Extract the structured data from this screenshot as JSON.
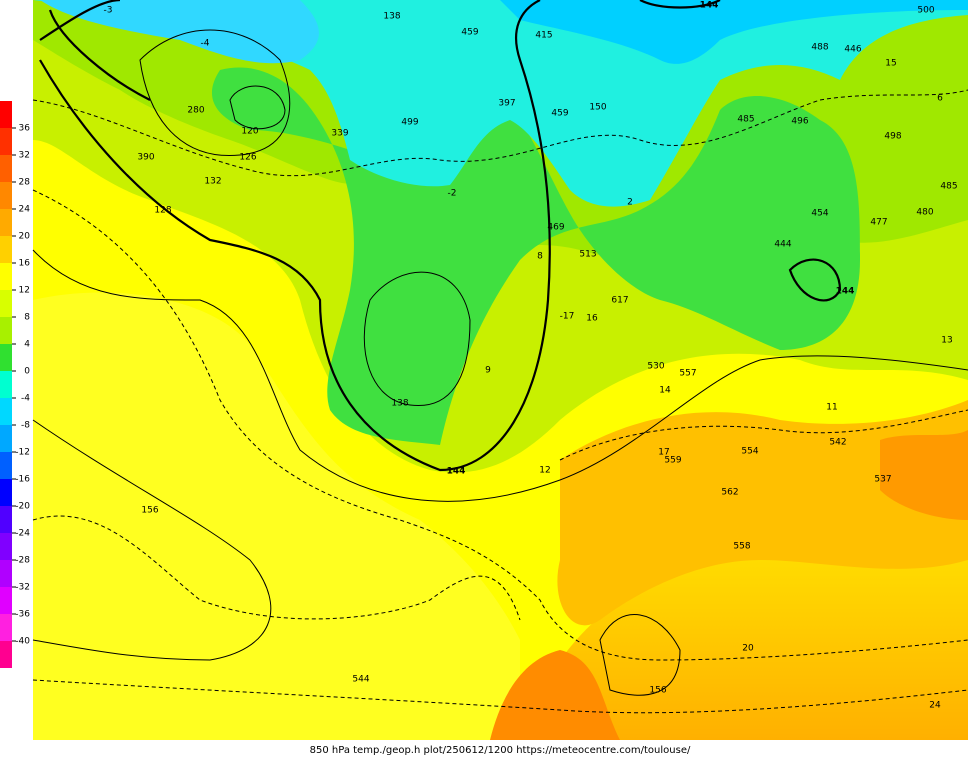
{
  "legend": {
    "ticks": [
      "36",
      "32",
      "28",
      "24",
      "20",
      "16",
      "12",
      "8",
      "4",
      "0",
      "-4",
      "-8",
      "-12",
      "-16",
      "-20",
      "-24",
      "-28",
      "-32",
      "-36",
      "-40"
    ]
  },
  "contour_labels": [
    "144",
    "144",
    "138",
    "138",
    "132",
    "126",
    "120",
    "150",
    "156",
    "156",
    "144"
  ],
  "isotherm_labels": [
    "-3",
    "-4",
    "-2",
    "2",
    "8",
    "9",
    "12",
    "17",
    "20",
    "24",
    "15",
    "14",
    "13",
    "16",
    "-17",
    "6",
    "11"
  ],
  "station_labels": [
    "459",
    "500",
    "485",
    "446",
    "390",
    "128",
    "280",
    "339",
    "499",
    "459",
    "415",
    "397",
    "469",
    "513",
    "617",
    "557",
    "559",
    "562",
    "558",
    "544",
    "554",
    "530",
    "542",
    "537",
    "488",
    "477",
    "454",
    "444",
    "496",
    "498",
    "485",
    "480"
  ],
  "footer": "850 hPa temp./geop.h plot/250612/1200 https://meteocentre.com/toulouse/"
}
